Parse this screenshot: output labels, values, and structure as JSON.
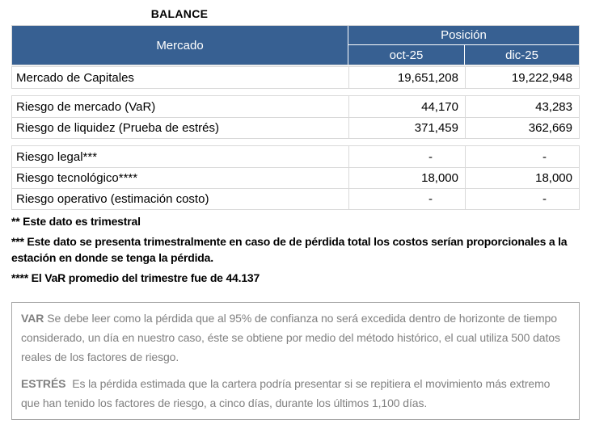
{
  "title": "BALANCE",
  "table": {
    "header": {
      "mercado": "Mercado",
      "posicion": "Posición",
      "col_oct": "oct-25",
      "col_dic": "dic-25"
    },
    "sections": [
      {
        "rows": [
          {
            "label": "Mercado de Capitales",
            "oct": "19,651,208",
            "dic": "19,222,948"
          }
        ]
      },
      {
        "rows": [
          {
            "label": "Riesgo de mercado (VaR)",
            "oct": "44,170",
            "dic": "43,283"
          },
          {
            "label": "Riesgo de liquidez (Prueba de estrés)",
            "oct": "371,459",
            "dic": "362,669"
          }
        ]
      },
      {
        "rows": [
          {
            "label": "Riesgo legal***",
            "oct": "-",
            "dic": "-"
          },
          {
            "label": "Riesgo tecnológico****",
            "oct": "18,000",
            "dic": "18,000"
          },
          {
            "label": "Riesgo operativo (estimación costo)",
            "oct": "-",
            "dic": "-"
          }
        ]
      }
    ]
  },
  "footnotes": [
    {
      "text": "** Este dato es trimestral"
    },
    {
      "text": "*** Este dato se presenta trimestralmente en caso de de pérdida total los costos serían proporcionales a la estación en donde se tenga la pérdida."
    },
    {
      "text": "**** El VaR promedio del trimestre fue de 44.137"
    }
  ],
  "glossary": [
    {
      "term": "VAR",
      "text": "Se debe leer como la pérdida que al 95% de confianza no será excedida dentro de horizonte de tiempo considerado, un día en nuestro caso, éste se obtiene por medio del método histórico, el cual utiliza 500 datos reales de los factores de riesgo."
    },
    {
      "term": "ESTRÉS",
      "text": " Es la pérdida estimada que la cartera podría presentar si se repitiera el movimiento más extremo que han tenido los factores de riesgo, a cinco días, durante los últimos 1,100 días."
    }
  ],
  "colors": {
    "header_bg": "#376092",
    "header_text": "#FFFFFF",
    "border": "#D9D9D9",
    "glossary_border": "#A6A6A6",
    "glossary_text": "#808080"
  }
}
